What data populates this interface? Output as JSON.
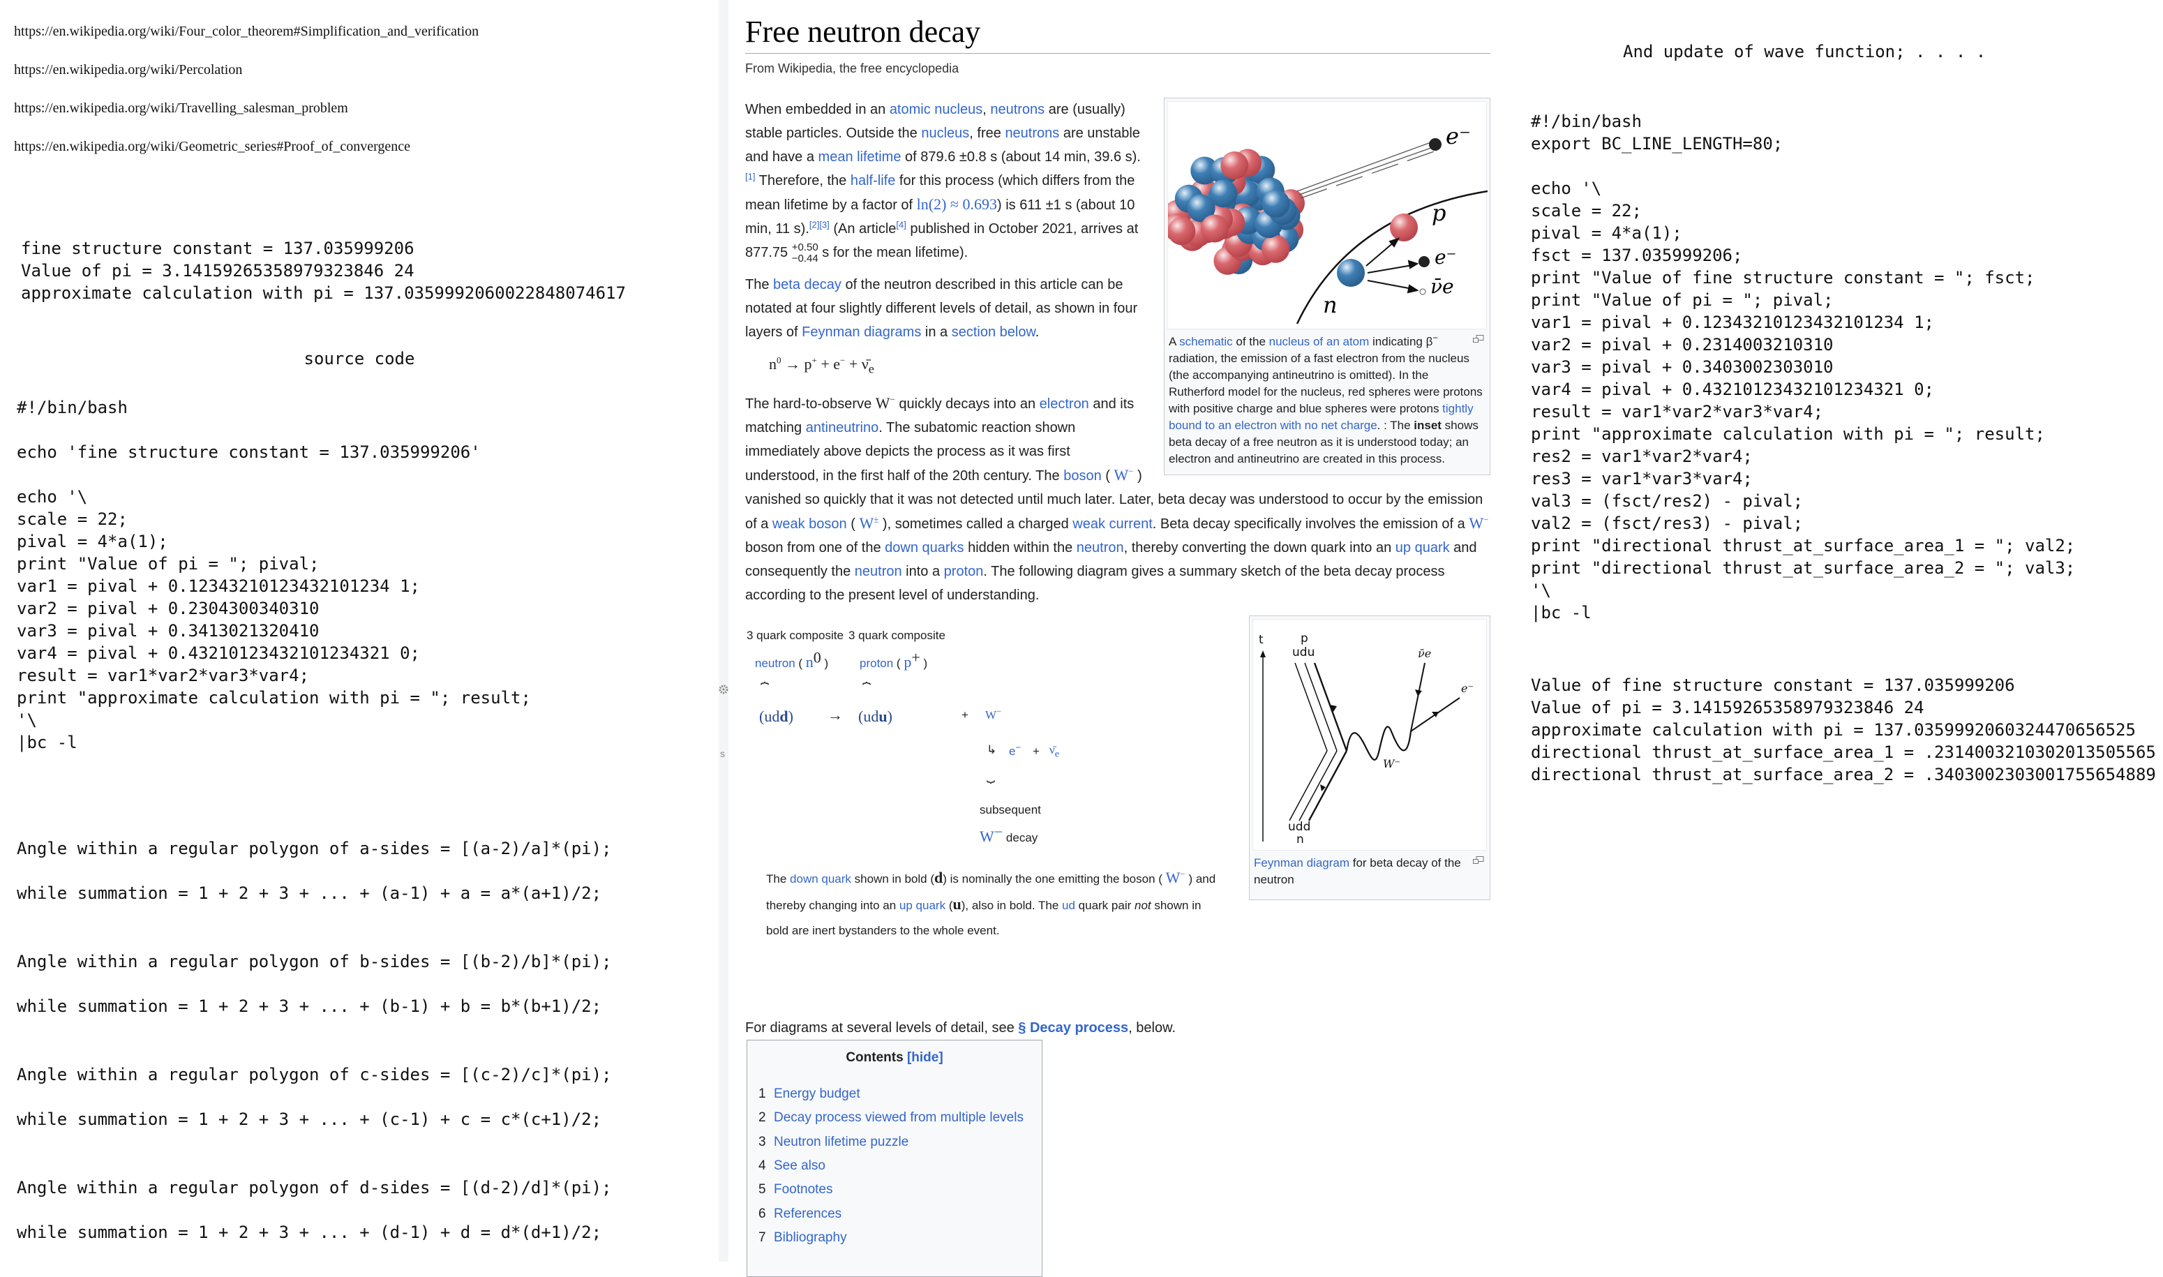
{
  "left": {
    "urls": [
      "https://en.wikipedia.org/wiki/Four_color_theorem#Simplification_and_verification",
      "https://en.wikipedia.org/wiki/Percolation",
      "https://en.wikipedia.org/wiki/Travelling_salesman_problem",
      "https://en.wikipedia.org/wiki/Geometric_series#Proof_of_convergence"
    ],
    "output": [
      "fine structure constant = 137.035999206",
      "Value of pi = 3.14159265358979323846 24",
      "approximate calculation with pi = 137.0359992060022848074617"
    ],
    "source_heading": "source code",
    "code": [
      "#!/bin/bash",
      "",
      "echo 'fine structure constant = 137.035999206'",
      "",
      "echo '\\",
      "scale = 22;",
      "pival = 4*a(1);",
      "print \"Value of pi = \"; pival;",
      "var1 = pival + 0.12343210123432101234 1;",
      "var2 = pival + 0.2304300340310",
      "var3 = pival + 0.3413021320410",
      "var4 = pival + 0.43210123432101234321 0;",
      "result = var1*var2*var3*var4;",
      "print \"approximate calculation with pi = \"; result;",
      "'\\",
      "|bc -l"
    ],
    "formulas": [
      "Angle within a regular polygon of a-sides = [(a-2)/a]*(pi);",
      "while summation = 1 + 2 + 3 + ... + (a-1) + a = a*(a+1)/2;",
      "Angle within a regular polygon of b-sides = [(b-2)/b]*(pi);",
      "while summation = 1 + 2 + 3 + ... + (b-1) + b = b*(b+1)/2;",
      "Angle within a regular polygon of c-sides = [(c-2)/c]*(pi);",
      "while summation = 1 + 2 + 3 + ... + (c-1) + c = c*(c+1)/2;",
      "Angle within a regular polygon of d-sides = [(d-2)/d]*(pi);",
      "while summation = 1 + 2 + 3 + ... + (d-1) + d = d*(d+1)/2;"
    ],
    "bar_glyph": "s"
  },
  "wiki": {
    "title": "Free neutron decay",
    "tagline": "From Wikipedia, the free encyclopedia",
    "para1": [
      {
        "t": "When embedded in an "
      },
      {
        "t": "atomic nucleus",
        "link": true
      },
      {
        "t": ", "
      },
      {
        "t": "neutrons",
        "link": true
      },
      {
        "t": " are (usually) stable particles. Outside the "
      },
      {
        "t": "nucleus",
        "link": true
      },
      {
        "t": ", free "
      },
      {
        "t": "neutrons",
        "link": true
      },
      {
        "t": " are unstable and have a "
      },
      {
        "t": "mean lifetime",
        "link": true
      },
      {
        "t": " of 879.6 ±0.8 s (about 14 min, 39.6 s)."
      },
      {
        "t": "[1]",
        "sup": true,
        "link": true
      },
      {
        "t": " Therefore, the "
      },
      {
        "t": "half-life",
        "link": true
      },
      {
        "t": " for this process (which differs from the mean lifetime by a factor of "
      },
      {
        "t": "ln(2) ≈ 0.693",
        "link": true,
        "math": true
      },
      {
        "t": ") is 611 ±1 s (about 10 min, 11 s)."
      },
      {
        "t": "[2][3]",
        "sup": true,
        "link": true
      },
      {
        "t": " (An article"
      },
      {
        "t": "[4]",
        "sup": true,
        "link": true
      },
      {
        "t": " published in October 2021, arrives at 877.75 "
      },
      {
        "t": "+0.50",
        "pmup": true
      },
      {
        "t": "−0.44",
        "pmdown": true
      },
      {
        "t": " s for the mean lifetime)."
      }
    ],
    "para2": [
      {
        "t": "The "
      },
      {
        "t": "beta decay",
        "link": true
      },
      {
        "t": " of the neutron described in this article can be notated at four slightly different levels of detail, as shown in four layers of "
      },
      {
        "t": "Feynman diagrams",
        "link": true
      },
      {
        "t": " in a "
      },
      {
        "t": "section below",
        "link": true
      },
      {
        "t": "."
      }
    ],
    "equation": {
      "n": "n",
      "n_sup": "0",
      "arrow": "→",
      "p": "p",
      "p_sup": "+",
      "plus1": "+",
      "e": "e",
      "e_sup": "−",
      "plus2": "+",
      "nu": "ν̄",
      "nu_sub": "e"
    },
    "para3": [
      {
        "t": "The hard-to-observe "
      },
      {
        "t": "W",
        "math": true,
        "supm": "−"
      },
      {
        "t": " quickly decays into an "
      },
      {
        "t": "electron",
        "link": true
      },
      {
        "t": " and its matching "
      },
      {
        "t": "antineutrino",
        "link": true
      },
      {
        "t": ". The subatomic reaction shown immediately above depicts the process as it was first understood, in the first half of the 20th century. The "
      },
      {
        "t": "boson",
        "link": true
      },
      {
        "t": " ( "
      },
      {
        "t": "W",
        "math": true,
        "link": true,
        "supm": "−"
      },
      {
        "t": " ) vanished so quickly that it was not detected until much later. Later, beta decay was understood to occur by the emission of a "
      },
      {
        "t": "weak boson",
        "link": true
      },
      {
        "t": " ( "
      },
      {
        "t": "W",
        "math": true,
        "link": true,
        "supm": "±"
      },
      {
        "t": " ), sometimes called a charged "
      },
      {
        "t": "weak current",
        "link": true
      },
      {
        "t": ". Beta decay specifically involves the emission of a "
      },
      {
        "t": "W",
        "math": true,
        "link": true,
        "supm": "−"
      },
      {
        "t": " boson from one of the "
      },
      {
        "t": "down quarks",
        "link": true
      },
      {
        "t": " hidden within the "
      },
      {
        "t": "neutron",
        "link": true
      },
      {
        "t": ", thereby converting the down quark into an "
      },
      {
        "t": "up quark",
        "link": true
      },
      {
        "t": " and consequently the "
      },
      {
        "t": "neutron",
        "link": true
      },
      {
        "t": " into a "
      },
      {
        "t": "proton",
        "link": true
      },
      {
        "t": ". The following diagram gives a summary sketch of the beta decay process according to the present level of understanding."
      }
    ],
    "figure1": {
      "labels": {
        "e1": "e⁻",
        "p": "p",
        "e2": "e⁻",
        "nu": "ν̄e",
        "n": "n"
      },
      "caption": [
        {
          "t": "A "
        },
        {
          "t": "schematic",
          "link": true
        },
        {
          "t": " of the "
        },
        {
          "t": "nucleus of an atom",
          "link": true
        },
        {
          "t": " indicating β"
        },
        {
          "t": "−",
          "sup": true
        },
        {
          "t": " radiation, the emission of a fast electron from the nucleus (the accompanying antineutrino is omitted). In the Rutherford model for the nucleus, red spheres were protons with positive charge and blue spheres were protons "
        },
        {
          "t": "tightly bound to an electron with no net charge",
          "link": true
        },
        {
          "t": ". : The "
        },
        {
          "t": "inset",
          "bold": true
        },
        {
          "t": " shows beta decay of a free neutron as it is understood today; an electron and antineutrino are created in this process."
        }
      ]
    },
    "quark": {
      "composite1": "3 quark composite",
      "composite2": "3 quark composite",
      "neutron": "neutron",
      "n": "n",
      "n_sup": "0",
      "proton": "proton",
      "p": "p",
      "p_sup": "+",
      "udd_pre": "(ud",
      "udd_bold": "d",
      "udd_post": ")",
      "arrow": "→",
      "udu_pre": "(ud",
      "udu_bold": "u",
      "udu_post": ")",
      "plus": "+",
      "W": "W",
      "W_sup": "−",
      "hook": "↳",
      "e": "e",
      "e_sup": "−",
      "plus2": "+",
      "nu": "ν̄",
      "nu_sub": "e",
      "brace": "⏞",
      "brace_under": "⏟",
      "subsequent": "subsequent",
      "decay": "decay",
      "note": [
        {
          "t": "The "
        },
        {
          "t": "down quark",
          "link": true
        },
        {
          "t": " shown in bold ("
        },
        {
          "t": "d",
          "bold": true,
          "math": true
        },
        {
          "t": ") is nominally the one emitting the boson ( "
        },
        {
          "t": "W",
          "math": true,
          "link": true,
          "supm": "−"
        },
        {
          "t": " ) and thereby changing into an "
        },
        {
          "t": "up quark",
          "link": true
        },
        {
          "t": " ("
        },
        {
          "t": "u",
          "bold": true,
          "math": true
        },
        {
          "t": "), also in bold. The "
        },
        {
          "t": "ud",
          "link": true
        },
        {
          "t": " quark pair "
        },
        {
          "t": "not",
          "italic": true
        },
        {
          "t": " shown in bold are inert bystanders to the whole event."
        }
      ]
    },
    "feynman": {
      "labels": {
        "t": "t",
        "p": "p",
        "udu": "udu",
        "udd": "udd",
        "n": "n",
        "W": "W⁻",
        "nu": "ν̄e",
        "e": "e⁻"
      },
      "caption_link": "Feynman diagram",
      "caption_rest": " for beta decay of the neutron"
    },
    "see_also": {
      "pre": "For diagrams at several levels of detail, see ",
      "link": "§ Decay process",
      "post": ", below."
    },
    "toc": {
      "title": "Contents",
      "hide": "[hide]",
      "items": [
        {
          "num": "1",
          "label": "Energy budget"
        },
        {
          "num": "2",
          "label": "Decay process viewed from multiple levels"
        },
        {
          "num": "3",
          "label": "Neutron lifetime puzzle"
        },
        {
          "num": "4",
          "label": "See also"
        },
        {
          "num": "5",
          "label": "Footnotes"
        },
        {
          "num": "6",
          "label": "References"
        },
        {
          "num": "7",
          "label": "Bibliography"
        }
      ]
    },
    "colors": {
      "link": "#3366cc",
      "text": "#202122",
      "proton": "#d9696f",
      "neutron": "#3f7fb5"
    }
  },
  "right": {
    "title": "And update of wave function; . . . .",
    "code": [
      "#!/bin/bash",
      "export BC_LINE_LENGTH=80;",
      "",
      "echo '\\",
      "scale = 22;",
      "pival = 4*a(1);",
      "fsct = 137.035999206;",
      "print \"Value of fine structure constant = \"; fsct;",
      "print \"Value of pi = \"; pival;",
      "var1 = pival + 0.12343210123432101234 1;",
      "var2 = pival + 0.2314003210310",
      "var3 = pival + 0.3403002303010",
      "var4 = pival + 0.43210123432101234321 0;",
      "result = var1*var2*var3*var4;",
      "print \"approximate calculation with pi = \"; result;",
      "res2 = var1*var2*var4;",
      "res3 = var1*var3*var4;",
      "val3 = (fsct/res2) - pival;",
      "val2 = (fsct/res3) - pival;",
      "print \"directional thrust_at_surface_area_1 = \"; val2;",
      "print \"directional thrust_at_surface_area_2 = \"; val3;",
      "'\\",
      "|bc -l"
    ],
    "output": [
      "Value of fine structure constant = 137.035999206",
      "Value of pi = 3.14159265358979323846 24",
      "approximate calculation with pi = 137.0359992060324470656525",
      "directional thrust_at_surface_area_1 = .2314003210302013505565",
      "directional thrust_at_surface_area_2 = .3403002303001755654889"
    ]
  }
}
